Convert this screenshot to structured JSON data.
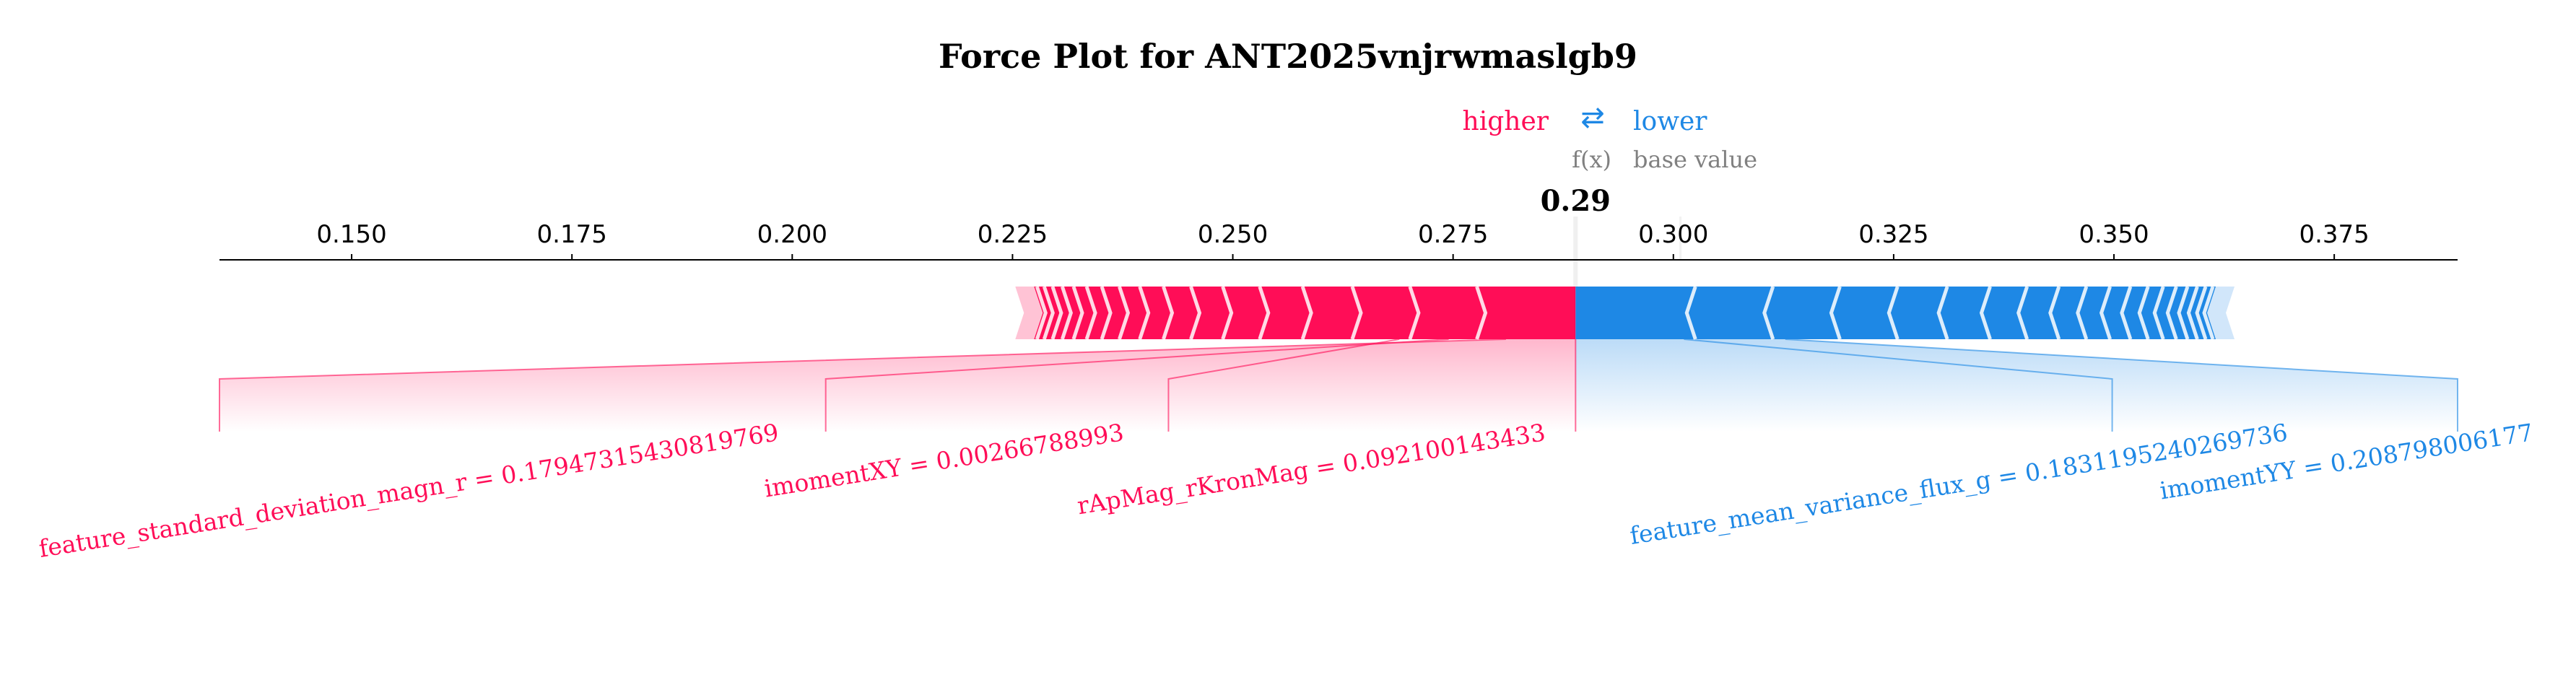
{
  "chart_data": {
    "type": "force",
    "title": "Force Plot for ANT2025vnjrwmaslgb9",
    "legend": {
      "higher_label": "higher",
      "arrow_glyph": "⇄",
      "lower_label": "lower",
      "fx_label": "f(x)",
      "base_label": "base value"
    },
    "output_value": 0.2889,
    "output_value_label": "0.29",
    "base_value": 0.3008,
    "xlim": [
      0.135,
      0.389
    ],
    "x_ticks": [
      0.15,
      0.175,
      0.2,
      0.225,
      0.25,
      0.275,
      0.3,
      0.325,
      0.35,
      0.375
    ],
    "x_tick_labels": [
      "0.150",
      "0.175",
      "0.200",
      "0.225",
      "0.250",
      "0.275",
      "0.300",
      "0.325",
      "0.350",
      "0.375"
    ],
    "positive_range": [
      0.2263,
      0.2889
    ],
    "negative_range": [
      0.2889,
      0.3627
    ],
    "features": [
      {
        "label": "feature_standard_deviation_magn_r = 0.17947315430819769",
        "side": "positive",
        "connect_value": 0.281,
        "text_anchor_value": 0.135
      },
      {
        "label": "imomentXY = 0.00266788993",
        "side": "positive",
        "connect_value": 0.2745,
        "text_anchor_value": 0.2038
      },
      {
        "label": "rApMag_rKronMag = 0.092100143433",
        "side": "positive",
        "connect_value": 0.2689,
        "text_anchor_value": 0.2427
      },
      {
        "label": "feature_mean_variance_flux_g = 0.1831195240269736",
        "side": "negative",
        "connect_value": 0.3012,
        "text_anchor_value": 0.3498
      },
      {
        "label": "imomentYY = 0.208798006177",
        "side": "negative",
        "connect_value": 0.3127,
        "text_anchor_value": 0.389
      }
    ],
    "colors": {
      "positive": "#ff0d57",
      "negative": "#1e88e5",
      "positive_light": "#ffc3d5",
      "negative_light": "#d1e6fa",
      "text_grey": "#808080",
      "axis": "#000000"
    }
  }
}
